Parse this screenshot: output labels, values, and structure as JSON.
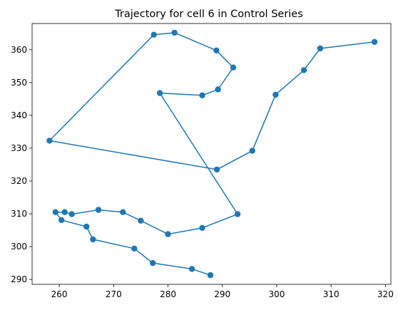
{
  "chart_data": {
    "type": "line",
    "title": "Trajectory for cell 6 in Control Series",
    "xlabel": "",
    "ylabel": "",
    "xlim": [
      255.0,
      321.0
    ],
    "ylim": [
      288.5,
      368.0
    ],
    "xticks": [
      260,
      270,
      280,
      290,
      300,
      310,
      320
    ],
    "yticks": [
      290,
      300,
      310,
      320,
      330,
      340,
      350,
      360
    ],
    "grid": false,
    "legend": "none",
    "markers": true,
    "color": "#1f77b4",
    "series": [
      {
        "x": [
          287.8,
          284.4,
          277.2,
          273.8,
          266.2,
          265.0,
          260.4,
          259.3,
          261.0,
          262.3,
          267.2,
          271.7,
          275.0,
          280.0,
          286.3,
          292.8,
          278.5,
          286.3,
          289.2,
          292.0,
          288.9,
          281.2,
          277.4,
          258.2,
          289.0,
          295.5,
          299.8,
          305.0,
          308.0,
          318.0
        ],
        "y": [
          291.3,
          293.2,
          295.0,
          299.4,
          302.2,
          306.1,
          308.1,
          310.5,
          310.5,
          309.9,
          311.2,
          310.5,
          307.9,
          303.8,
          305.7,
          309.9,
          346.8,
          346.1,
          347.9,
          354.6,
          359.8,
          365.2,
          364.6,
          332.3,
          323.5,
          329.2,
          346.3,
          353.8,
          360.4,
          362.4
        ]
      }
    ]
  }
}
